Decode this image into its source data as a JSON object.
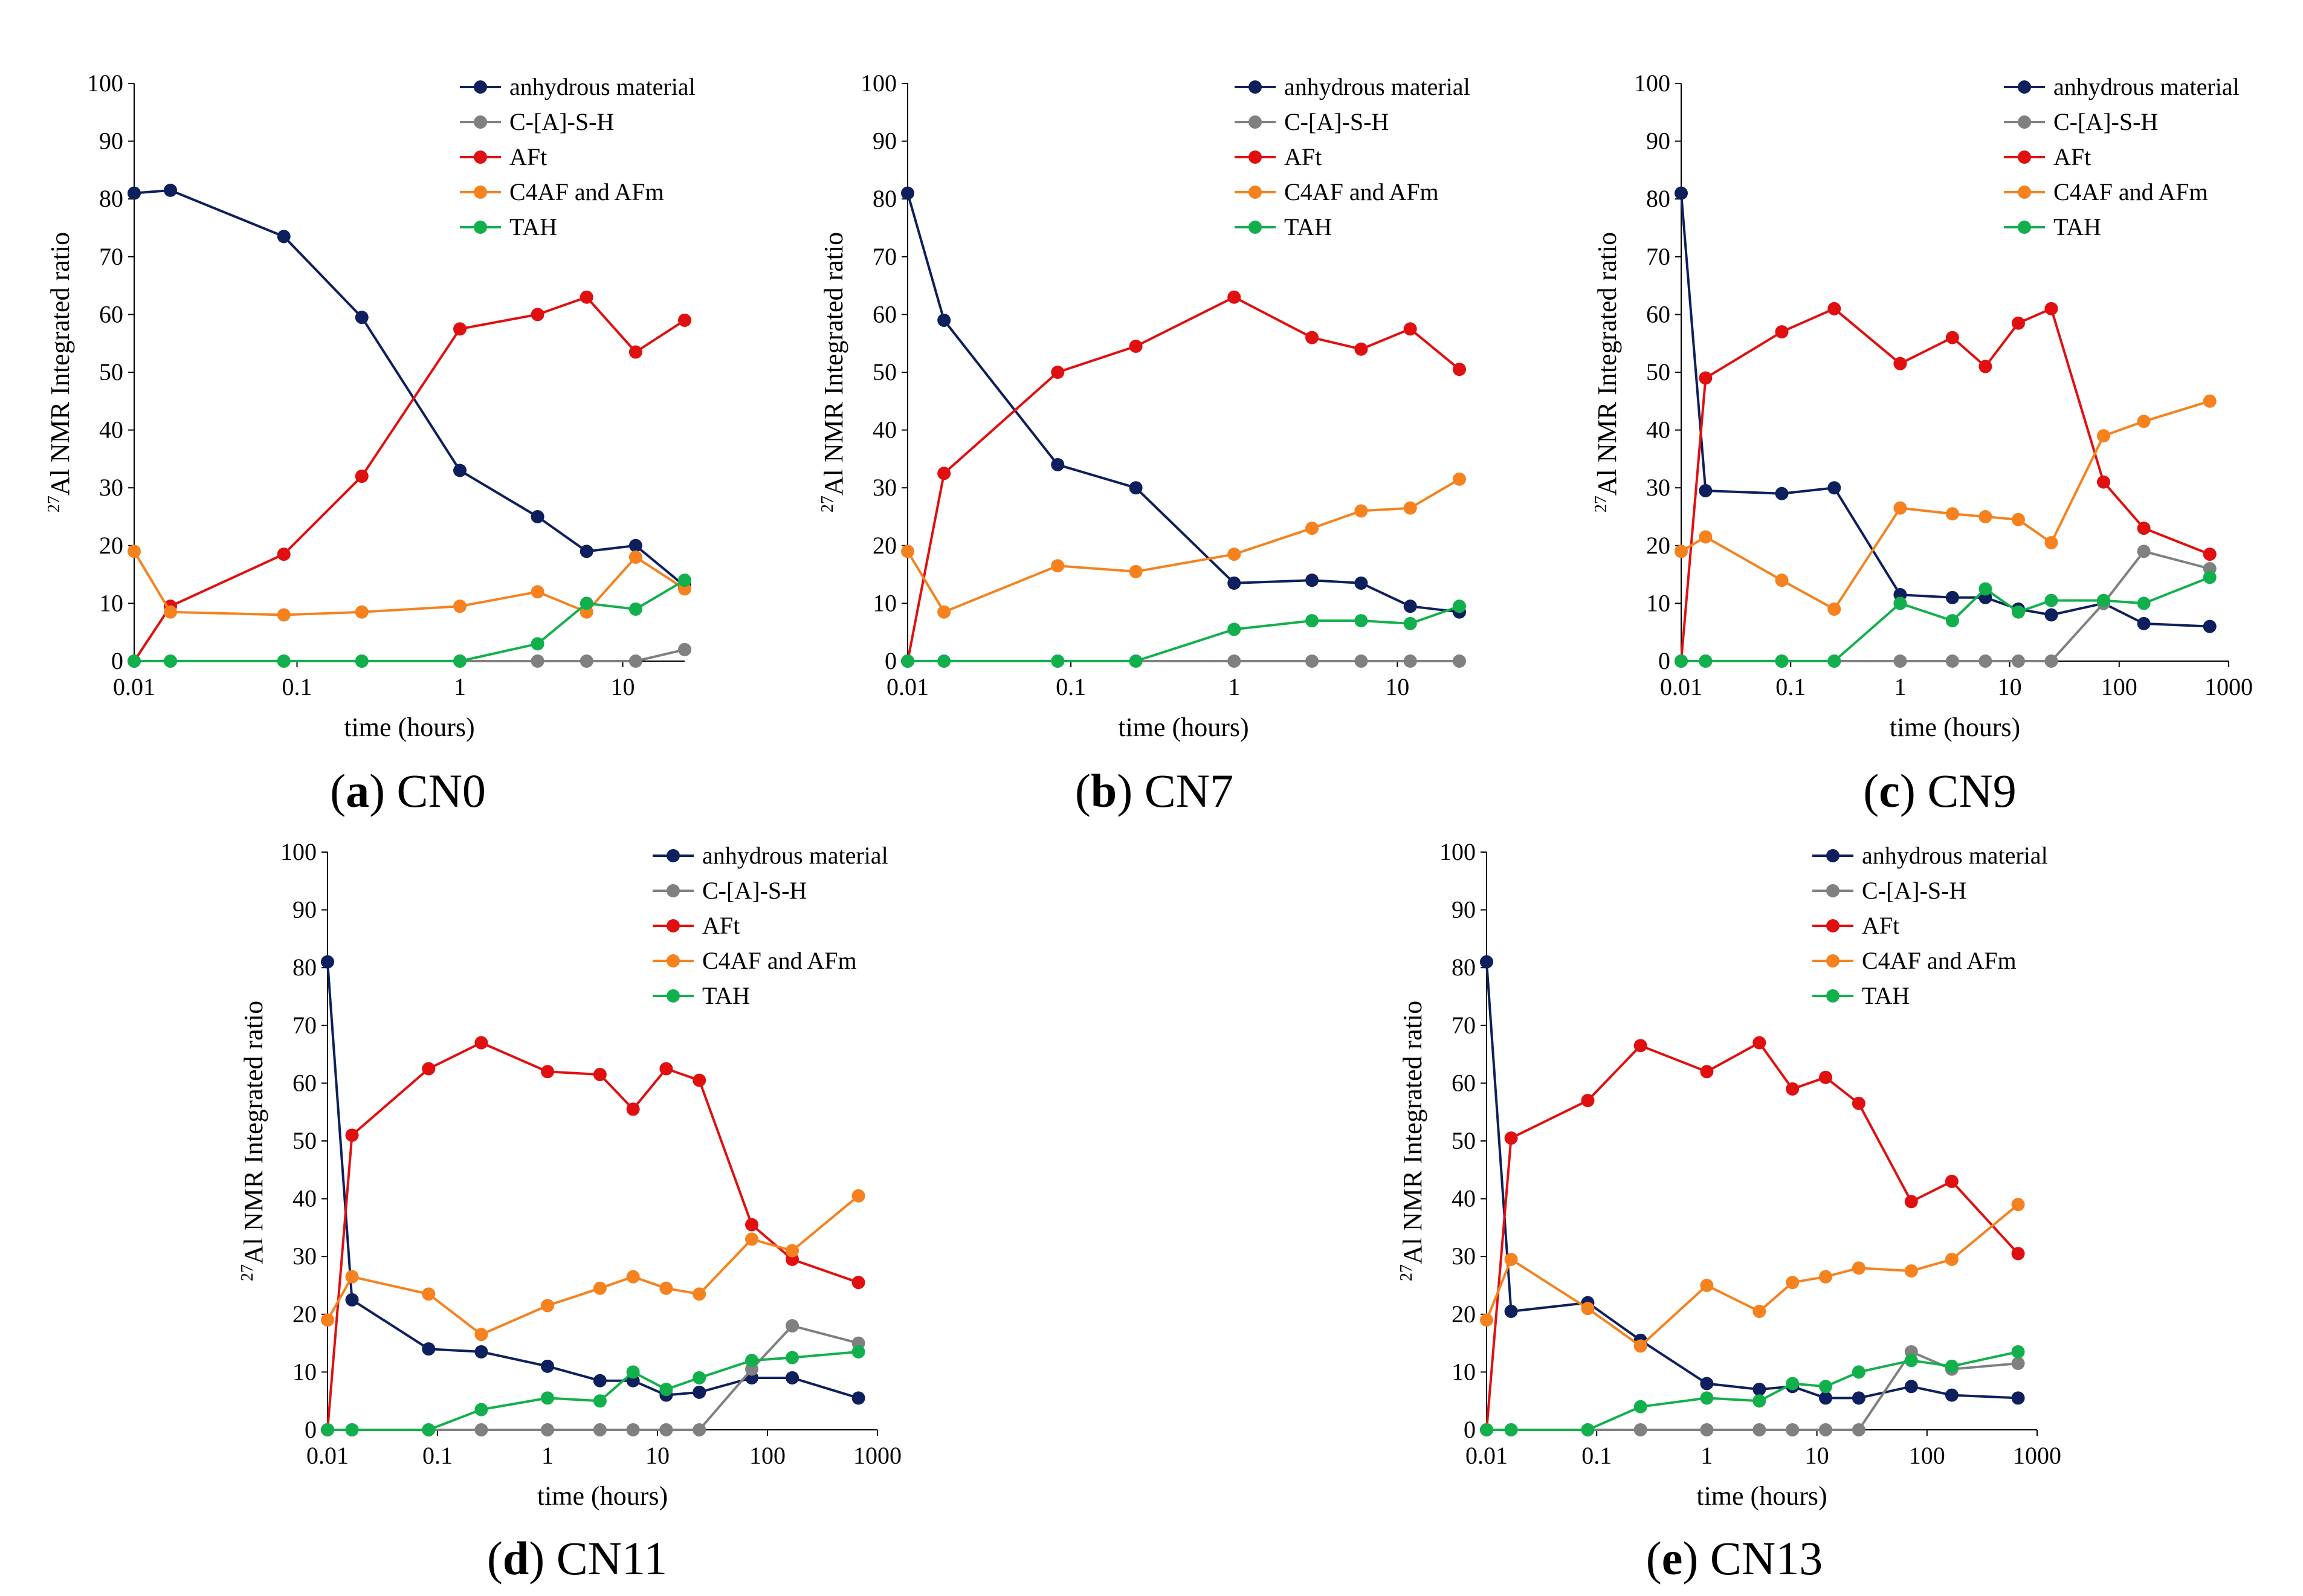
{
  "figure": {
    "series_meta": [
      {
        "name": "anhydrous material",
        "color": "#0d1f5c"
      },
      {
        "name": "C-[A]-S-H",
        "color": "#808080"
      },
      {
        "name": "AFt",
        "color": "#e01010"
      },
      {
        "name": "C4AF and AFm",
        "color": "#f5821f"
      },
      {
        "name": "TAH",
        "color": "#12b04c"
      }
    ]
  },
  "chart_data": [
    {
      "type": "line",
      "caption_letter": "a",
      "caption_name": "CN0",
      "xlabel": "time (hours)",
      "ylabel_sup": "27",
      "ylabel": "Al NMR Integrated ratio",
      "xscale": "log",
      "xlim": [
        0.01,
        24
      ],
      "ylim": [
        0,
        100
      ],
      "xticks": [
        0.01,
        0.1,
        1,
        10
      ],
      "xtick_labels": [
        "0.01",
        "0.1",
        "1",
        "10"
      ],
      "yticks": [
        0,
        10,
        20,
        30,
        40,
        50,
        60,
        70,
        80,
        90,
        100
      ],
      "legend": "top-right",
      "x": [
        0.01,
        0.0167,
        0.083,
        0.25,
        1,
        3,
        6,
        12,
        24
      ],
      "series": [
        {
          "name": "anhydrous material",
          "values": [
            81,
            81.5,
            73.5,
            59.5,
            33,
            25,
            19,
            20,
            13
          ]
        },
        {
          "name": "C-[A]-S-H",
          "values": [
            0,
            0,
            0,
            0,
            0,
            0,
            0,
            0,
            2
          ]
        },
        {
          "name": "AFt",
          "values": [
            0,
            9.5,
            18.5,
            32,
            57.5,
            60,
            63,
            53.5,
            59
          ]
        },
        {
          "name": "C4AF and AFm",
          "values": [
            19,
            8.5,
            8,
            8.5,
            9.5,
            12,
            8.5,
            18,
            12.5
          ]
        },
        {
          "name": "TAH",
          "values": [
            0,
            0,
            0,
            0,
            0,
            3,
            10,
            9,
            14
          ]
        }
      ]
    },
    {
      "type": "line",
      "caption_letter": "b",
      "caption_name": "CN7",
      "xlabel": "time (hours)",
      "ylabel_sup": "27",
      "ylabel": "Al NMR Integrated ratio",
      "xscale": "log",
      "xlim": [
        0.01,
        24
      ],
      "ylim": [
        0,
        100
      ],
      "xticks": [
        0.01,
        0.1,
        1,
        10
      ],
      "xtick_labels": [
        "0.01",
        "0.1",
        "1",
        "10"
      ],
      "yticks": [
        0,
        10,
        20,
        30,
        40,
        50,
        60,
        70,
        80,
        90,
        100
      ],
      "legend": "top-right",
      "x": [
        0.01,
        0.0167,
        0.083,
        0.25,
        1,
        3,
        6,
        12,
        24
      ],
      "series": [
        {
          "name": "anhydrous material",
          "values": [
            81,
            59,
            34,
            30,
            13.5,
            14,
            13.5,
            9.5,
            8.5
          ]
        },
        {
          "name": "C-[A]-S-H",
          "values": [
            0,
            0,
            0,
            0,
            0,
            0,
            0,
            0,
            0
          ]
        },
        {
          "name": "AFt",
          "values": [
            0,
            32.5,
            50,
            54.5,
            63,
            56,
            54,
            57.5,
            50.5
          ]
        },
        {
          "name": "C4AF and AFm",
          "values": [
            19,
            8.5,
            16.5,
            15.5,
            18.5,
            23,
            26,
            26.5,
            31.5
          ]
        },
        {
          "name": "TAH",
          "values": [
            0,
            0,
            0,
            0,
            5.5,
            7,
            7,
            6.5,
            9.5
          ]
        }
      ]
    },
    {
      "type": "line",
      "caption_letter": "c",
      "caption_name": "CN9",
      "xlabel": "time (hours)",
      "ylabel_sup": "27",
      "ylabel": "Al NMR Integrated ratio",
      "xscale": "log",
      "xlim": [
        0.01,
        1000
      ],
      "ylim": [
        0,
        100
      ],
      "xticks": [
        0.01,
        0.1,
        1,
        10,
        100,
        1000
      ],
      "xtick_labels": [
        "0.01",
        "0.1",
        "1",
        "10",
        "100",
        "1000"
      ],
      "yticks": [
        0,
        10,
        20,
        30,
        40,
        50,
        60,
        70,
        80,
        90,
        100
      ],
      "legend": "top-right",
      "x": [
        0.01,
        0.0167,
        0.083,
        0.25,
        1,
        3,
        6,
        12,
        24,
        72,
        168,
        672
      ],
      "series": [
        {
          "name": "anhydrous material",
          "values": [
            81,
            29.5,
            29,
            30,
            11.5,
            11,
            11,
            9,
            8,
            10,
            6.5,
            6
          ]
        },
        {
          "name": "C-[A]-S-H",
          "values": [
            0,
            0,
            0,
            0,
            0,
            0,
            0,
            0,
            0,
            10,
            19,
            16
          ]
        },
        {
          "name": "AFt",
          "values": [
            0,
            49,
            57,
            61,
            51.5,
            56,
            51,
            58.5,
            61,
            31,
            23,
            18.5
          ]
        },
        {
          "name": "C4AF and AFm",
          "values": [
            19,
            21.5,
            14,
            9,
            26.5,
            25.5,
            25,
            24.5,
            20.5,
            39,
            41.5,
            45
          ]
        },
        {
          "name": "TAH",
          "values": [
            0,
            0,
            0,
            0,
            10,
            7,
            12.5,
            8.5,
            10.5,
            10.5,
            10,
            14.5
          ]
        }
      ]
    },
    {
      "type": "line",
      "caption_letter": "d",
      "caption_name": "CN11",
      "xlabel": "time (hours)",
      "ylabel_sup": "27",
      "ylabel": "Al NMR Integrated ratio",
      "xscale": "log",
      "xlim": [
        0.01,
        1000
      ],
      "ylim": [
        0,
        100
      ],
      "xticks": [
        0.01,
        0.1,
        1,
        10,
        100,
        1000
      ],
      "xtick_labels": [
        "0.01",
        "0.1",
        "1",
        "10",
        "100",
        "1000"
      ],
      "yticks": [
        0,
        10,
        20,
        30,
        40,
        50,
        60,
        70,
        80,
        90,
        100
      ],
      "legend": "top-right",
      "x": [
        0.01,
        0.0167,
        0.083,
        0.25,
        1,
        3,
        6,
        12,
        24,
        72,
        168,
        672
      ],
      "series": [
        {
          "name": "anhydrous material",
          "values": [
            81,
            22.5,
            14,
            13.5,
            11,
            8.5,
            8.5,
            6,
            6.5,
            9,
            9,
            5.5
          ]
        },
        {
          "name": "C-[A]-S-H",
          "values": [
            0,
            0,
            0,
            0,
            0,
            0,
            0,
            0,
            0,
            10.5,
            18,
            15
          ]
        },
        {
          "name": "AFt",
          "values": [
            0,
            51,
            62.5,
            67,
            62,
            61.5,
            55.5,
            62.5,
            60.5,
            35.5,
            29.5,
            25.5
          ]
        },
        {
          "name": "C4AF and AFm",
          "values": [
            19,
            26.5,
            23.5,
            16.5,
            21.5,
            24.5,
            26.5,
            24.5,
            23.5,
            33,
            31,
            40.5
          ]
        },
        {
          "name": "TAH",
          "values": [
            0,
            0,
            0,
            3.5,
            5.5,
            5,
            10,
            7,
            9,
            12,
            12.5,
            13.5
          ]
        }
      ]
    },
    {
      "type": "line",
      "caption_letter": "e",
      "caption_name": "CN13",
      "xlabel": "time (hours)",
      "ylabel_sup": "27",
      "ylabel": "Al NMR Integrated ratio",
      "xscale": "log",
      "xlim": [
        0.01,
        1000
      ],
      "ylim": [
        0,
        100
      ],
      "xticks": [
        0.01,
        0.1,
        1,
        10,
        100,
        1000
      ],
      "xtick_labels": [
        "0.01",
        "0.1",
        "1",
        "10",
        "100",
        "1000"
      ],
      "yticks": [
        0,
        10,
        20,
        30,
        40,
        50,
        60,
        70,
        80,
        90,
        100
      ],
      "legend": "top-right",
      "x": [
        0.01,
        0.0167,
        0.083,
        0.25,
        1,
        3,
        6,
        12,
        24,
        72,
        168,
        672
      ],
      "series": [
        {
          "name": "anhydrous material",
          "values": [
            81,
            20.5,
            22,
            15.5,
            8,
            7,
            7.5,
            5.5,
            5.5,
            7.5,
            6,
            5.5
          ]
        },
        {
          "name": "C-[A]-S-H",
          "values": [
            0,
            0,
            0,
            0,
            0,
            0,
            0,
            0,
            0,
            13.5,
            10.5,
            11.5
          ]
        },
        {
          "name": "AFt",
          "values": [
            0,
            50.5,
            57,
            66.5,
            62,
            67,
            59,
            61,
            56.5,
            39.5,
            43,
            30.5
          ]
        },
        {
          "name": "C4AF and AFm",
          "values": [
            19,
            29.5,
            21,
            14.5,
            25,
            20.5,
            25.5,
            26.5,
            28,
            27.5,
            29.5,
            39
          ]
        },
        {
          "name": "TAH",
          "values": [
            0,
            0,
            0,
            4,
            5.5,
            5,
            8,
            7.5,
            10,
            12,
            11,
            13.5
          ]
        }
      ]
    }
  ]
}
